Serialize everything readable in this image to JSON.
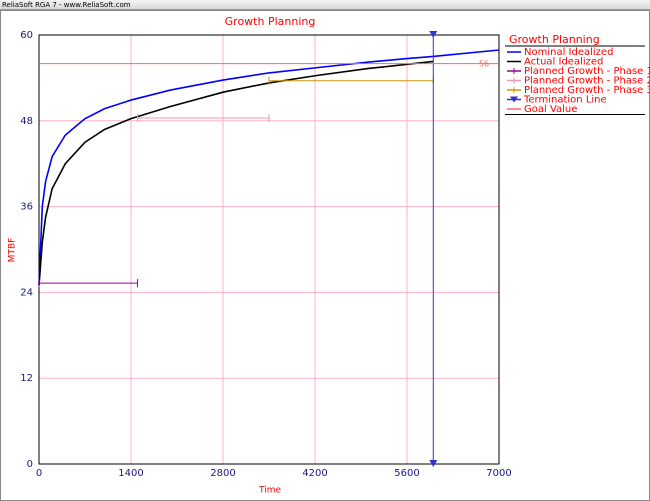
{
  "window_title": "ReliaSoft RGA 7 - www.ReliaSoft.com",
  "chart_data": {
    "type": "line",
    "title": "Growth Planning",
    "x_label": "Time",
    "y_label": "MTBF",
    "xlim": [
      0,
      7000
    ],
    "xticks": [
      0,
      1400,
      2800,
      4200,
      5600,
      7000
    ],
    "ylim": [
      0,
      60
    ],
    "yticks": [
      0,
      12,
      24,
      36,
      48,
      60
    ],
    "grid": true,
    "series": [
      {
        "name": "Nominal Idealized",
        "color": "#0000ff",
        "x": [
          0,
          50,
          100,
          200,
          400,
          700,
          1000,
          1400,
          2000,
          2800,
          3500,
          4200,
          5000,
          5600,
          6000,
          7000
        ],
        "values": [
          25,
          36,
          39.5,
          43,
          46,
          48.3,
          49.7,
          50.9,
          52.3,
          53.7,
          54.7,
          55.4,
          56.2,
          56.7,
          57,
          57.9
        ]
      },
      {
        "name": "Actual Idealized",
        "color": "#000000",
        "x": [
          0,
          50,
          100,
          200,
          400,
          700,
          1000,
          1400,
          2000,
          2800,
          3500,
          4200,
          5000,
          5600,
          6000
        ],
        "values": [
          25,
          31,
          34.5,
          38.5,
          42,
          45,
          46.8,
          48.3,
          50,
          52,
          53.3,
          54.3,
          55.3,
          55.9,
          56.3
        ]
      },
      {
        "name": "Planned Growth - Phase 1",
        "color": "#990099",
        "marker": "tick",
        "x": [
          0,
          1500
        ],
        "values": [
          25.3,
          25.3
        ]
      },
      {
        "name": "Planned Growth - Phase 2",
        "color": "#e89ab8",
        "marker": "tick",
        "x": [
          1500,
          3500
        ],
        "values": [
          48.4,
          48.4
        ]
      },
      {
        "name": "Planned Growth - Phase 3",
        "color": "#cc9900",
        "marker": "tick",
        "x": [
          3500,
          6000
        ],
        "values": [
          53.6,
          53.6
        ]
      },
      {
        "name": "Termination Line",
        "color": "#3333cc",
        "marker": "triangle",
        "x": [
          6000,
          6000
        ],
        "values": [
          0,
          60
        ]
      },
      {
        "name": "Goal Value",
        "color": "#ff6666",
        "label_end": true,
        "x": [
          0,
          7000
        ],
        "values": [
          56,
          56
        ]
      }
    ]
  }
}
